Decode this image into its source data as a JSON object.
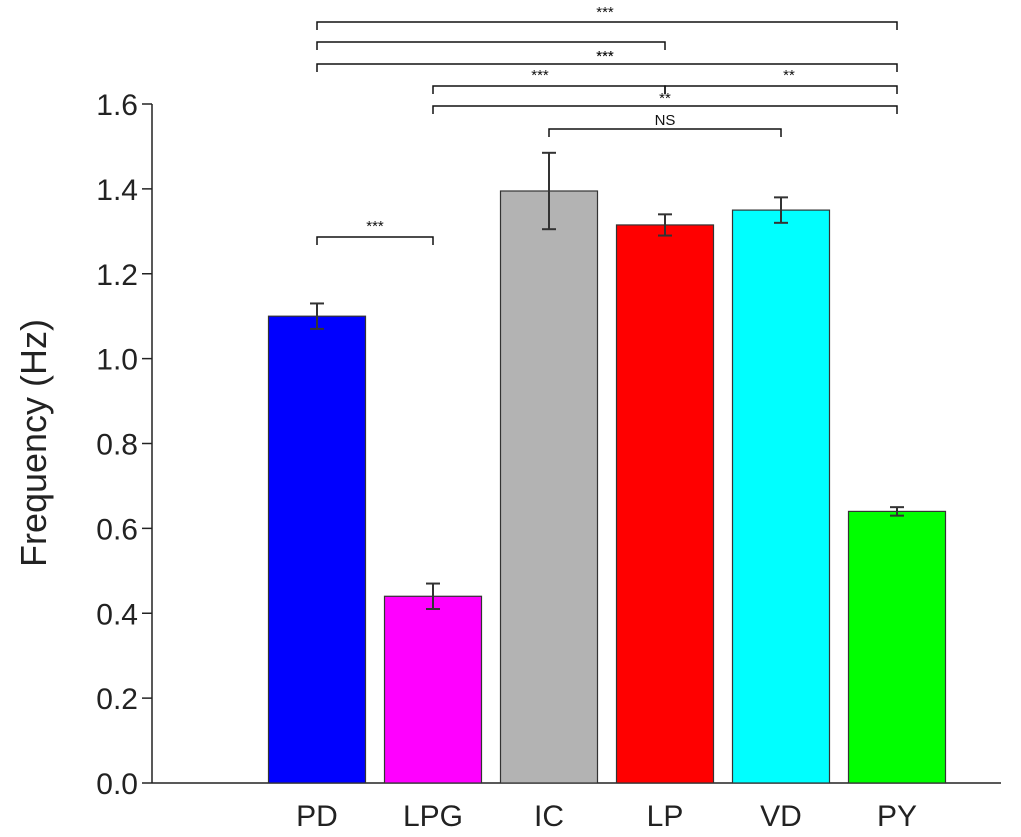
{
  "chart_data": {
    "type": "bar",
    "title": "",
    "xlabel": "",
    "ylabel": "Frequency (Hz)",
    "ylim": [
      0,
      1.6
    ],
    "yticks": [
      0.0,
      0.2,
      0.4,
      0.6,
      0.8,
      1.0,
      1.2,
      1.4,
      1.6
    ],
    "ytick_labels": [
      "0.0",
      "0.2",
      "0.4",
      "0.6",
      "0.8",
      "1.0",
      "1.2",
      "1.4",
      "1.6"
    ],
    "categories": [
      "PD",
      "LPG",
      "IC",
      "LP",
      "VD",
      "PY"
    ],
    "values": [
      1.1,
      0.44,
      1.395,
      1.315,
      1.35,
      0.64
    ],
    "errors": [
      0.03,
      0.03,
      0.09,
      0.025,
      0.03,
      0.01
    ],
    "colors": [
      "#0000ff",
      "#ff00ff",
      "#b3b3b3",
      "#ff0000",
      "#00ffff",
      "#00ff00"
    ],
    "grid": false,
    "significance": [
      {
        "from": 0,
        "to": 5,
        "label": "***"
      },
      {
        "from": 0,
        "to": 3,
        "label": "***"
      },
      {
        "from": 0,
        "to": 5,
        "label": "***"
      },
      {
        "from": 1,
        "to": 3,
        "label": "***"
      },
      {
        "from": 3,
        "to": 5,
        "label": "**"
      },
      {
        "from": 1,
        "to": 5,
        "label": "**"
      },
      {
        "from": 2,
        "to": 4,
        "label": "NS"
      },
      {
        "from": 0,
        "to": 1,
        "label": "***"
      }
    ]
  }
}
